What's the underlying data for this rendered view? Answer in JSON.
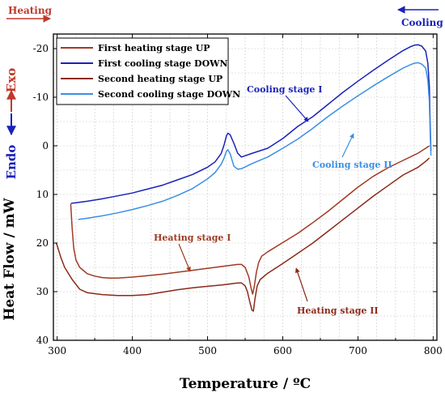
{
  "chart_data": {
    "type": "line",
    "xlabel": "Temperature / ºC",
    "ylabel": "Heat Flow / mW",
    "xlim": [
      295,
      805
    ],
    "ylim": [
      40,
      -23
    ],
    "y_axis_inverted": true,
    "xticks": [
      300,
      400,
      500,
      600,
      700,
      800
    ],
    "yticks": [
      -20,
      -10,
      0,
      10,
      20,
      30,
      40
    ],
    "grid": true,
    "legend_position": "top-left",
    "corner_labels": {
      "heating": "Heating",
      "cooling": "Cooling"
    },
    "side_labels": {
      "exo": "Exo",
      "endo": "Endo"
    },
    "series": [
      {
        "name": "First heating stage UP",
        "color": "#a03a24",
        "x": [
          318,
          320,
          322,
          325,
          330,
          340,
          350,
          360,
          370,
          380,
          390,
          400,
          420,
          440,
          460,
          480,
          500,
          520,
          540,
          545,
          550,
          555,
          558,
          560,
          562,
          565,
          568,
          572,
          580,
          600,
          620,
          640,
          660,
          680,
          700,
          720,
          740,
          760,
          780,
          790,
          795
        ],
        "y": [
          12,
          17,
          21,
          23.5,
          25,
          26.3,
          26.8,
          27.1,
          27.2,
          27.2,
          27.1,
          27,
          26.7,
          26.4,
          26,
          25.6,
          25.2,
          24.8,
          24.4,
          24.4,
          25,
          27,
          29.3,
          30.5,
          29,
          26,
          24,
          22.7,
          21.8,
          19.9,
          18,
          15.8,
          13.5,
          11,
          8.5,
          6.3,
          4.5,
          3,
          1.5,
          0.5,
          0
        ]
      },
      {
        "name": "First cooling stage DOWN",
        "color": "#1b22b8",
        "x": [
          797,
          796,
          795,
          793,
          790,
          785,
          780,
          775,
          770,
          760,
          740,
          720,
          700,
          680,
          660,
          640,
          620,
          600,
          580,
          560,
          545,
          540,
          535,
          530,
          527,
          525,
          522,
          518,
          510,
          500,
          480,
          460,
          440,
          420,
          400,
          380,
          360,
          340,
          330,
          325,
          320,
          318
        ],
        "y": [
          1,
          -5,
          -12,
          -17,
          -19.5,
          -20.5,
          -20.8,
          -20.7,
          -20.4,
          -19.6,
          -17.6,
          -15.5,
          -13.3,
          -11,
          -8.5,
          -6,
          -4,
          -1.5,
          0.5,
          1.5,
          2.3,
          1.5,
          -0.5,
          -2.3,
          -2.6,
          -2,
          -0.2,
          1.6,
          3.3,
          4.4,
          5.9,
          7,
          8.1,
          8.9,
          9.7,
          10.3,
          10.9,
          11.4,
          11.6,
          11.7,
          11.8,
          11.9
        ]
      },
      {
        "name": "Second heating stage UP",
        "color": "#8b2a1a",
        "x": [
          299,
          305,
          310,
          320,
          330,
          340,
          360,
          380,
          400,
          420,
          440,
          460,
          480,
          500,
          520,
          540,
          545,
          550,
          553,
          556,
          559,
          561,
          563,
          566,
          570,
          580,
          600,
          620,
          640,
          660,
          680,
          700,
          720,
          740,
          760,
          780,
          790,
          795
        ],
        "y": [
          20,
          23,
          25,
          27.5,
          29.5,
          30.2,
          30.6,
          30.8,
          30.8,
          30.6,
          30.1,
          29.6,
          29.2,
          28.9,
          28.6,
          28.2,
          28.2,
          28.8,
          30,
          32,
          33.8,
          34,
          31.5,
          28.8,
          27.5,
          26.2,
          24.2,
          22.1,
          20,
          17.6,
          15.2,
          12.8,
          10.4,
          8.2,
          6,
          4.4,
          3.2,
          2.5
        ]
      },
      {
        "name": "Second cooling stage DOWN",
        "color": "#3a8fe6",
        "x": [
          797,
          796,
          795,
          793,
          790,
          785,
          780,
          775,
          770,
          760,
          740,
          720,
          700,
          680,
          660,
          640,
          620,
          600,
          580,
          560,
          545,
          540,
          535,
          530,
          527,
          525,
          522,
          518,
          510,
          500,
          480,
          460,
          440,
          420,
          400,
          380,
          360,
          340,
          330,
          328
        ],
        "y": [
          2,
          -3,
          -9,
          -13.5,
          -16,
          -16.8,
          -17.1,
          -17,
          -16.7,
          -16,
          -14.2,
          -12.3,
          -10.3,
          -8.2,
          -6,
          -3.6,
          -1.4,
          0.5,
          2.3,
          3.6,
          4.7,
          4.8,
          4.2,
          1.6,
          0.8,
          1.1,
          2.5,
          3.8,
          5.5,
          6.8,
          8.8,
          10.2,
          11.4,
          12.3,
          13.1,
          13.8,
          14.4,
          14.9,
          15.1,
          15.2
        ]
      }
    ],
    "annotations": [
      {
        "text": "Cooling stage I",
        "color": "#1b22b8"
      },
      {
        "text": "Cooling stage II",
        "color": "#3a8fe6"
      },
      {
        "text": "Heating stage I",
        "color": "#a03a24"
      },
      {
        "text": "Heating stage II",
        "color": "#8b2a1a"
      }
    ]
  }
}
